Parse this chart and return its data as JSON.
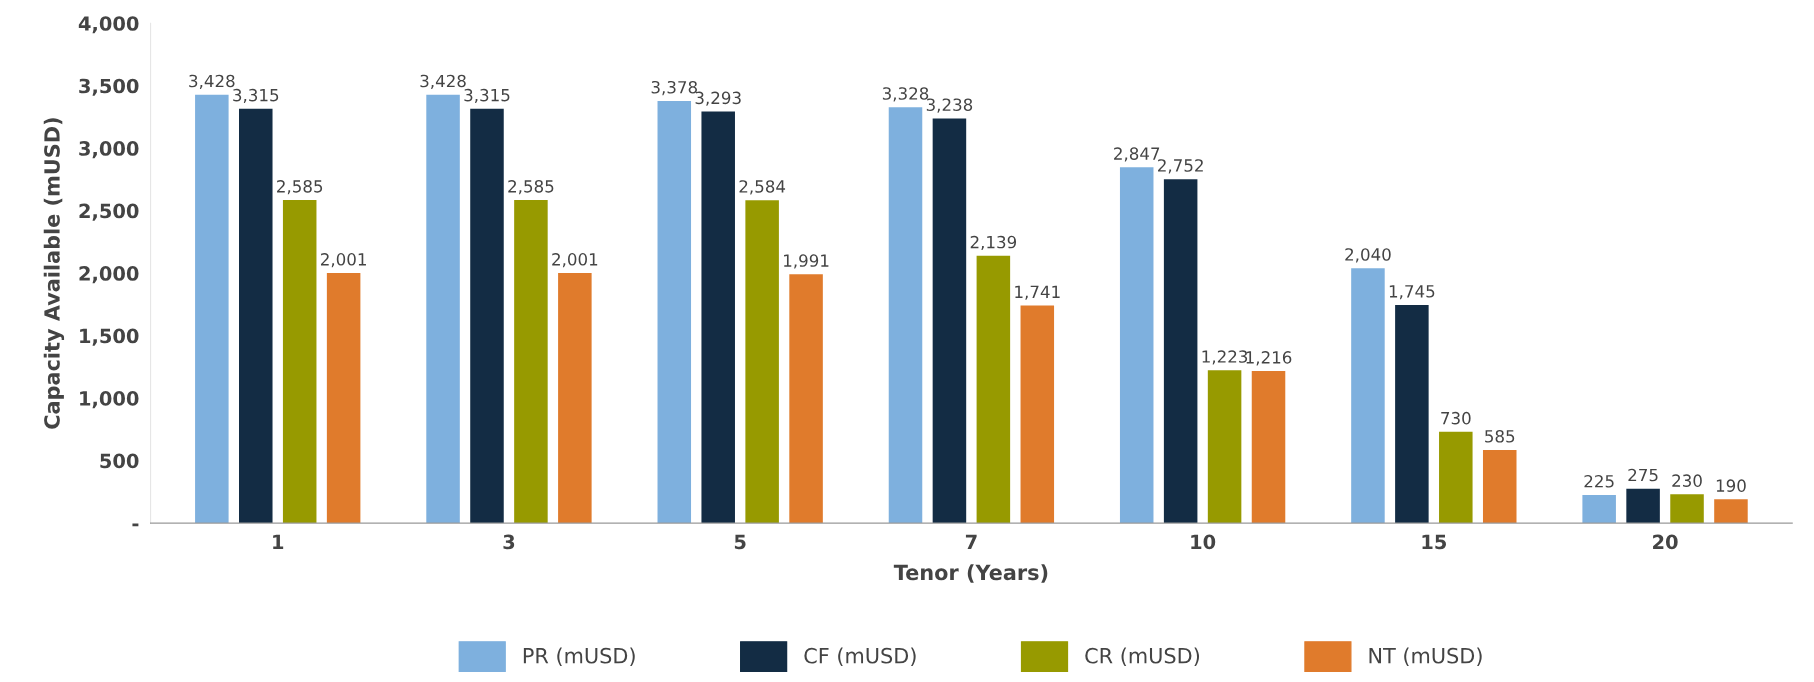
{
  "chart_data": {
    "type": "bar",
    "xlabel": "Tenor (Years)",
    "ylabel": "Capacity Available (mUSD)",
    "categories": [
      "1",
      "3",
      "5",
      "7",
      "10",
      "15",
      "20"
    ],
    "series": [
      {
        "name": "PR (mUSD)",
        "color": "#7eb0de",
        "values": [
          3428,
          3428,
          3378,
          3328,
          2847,
          2040,
          225
        ],
        "value_labels": [
          "3,428",
          "3,428",
          "3,378",
          "3,328",
          "2,847",
          "2,040",
          "225"
        ]
      },
      {
        "name": "CF (mUSD)",
        "color": "#132c44",
        "values": [
          3315,
          3315,
          3293,
          3238,
          2752,
          1745,
          275
        ],
        "value_labels": [
          "3,315",
          "3,315",
          "3,293",
          "3,238",
          "2,752",
          "1,745",
          "275"
        ]
      },
      {
        "name": "CR (mUSD)",
        "color": "#979a00",
        "values": [
          2585,
          2585,
          2584,
          2139,
          1223,
          730,
          230
        ],
        "value_labels": [
          "2,585",
          "2,585",
          "2,584",
          "2,139",
          "1,223",
          "730",
          "230"
        ]
      },
      {
        "name": "NT (mUSD)",
        "color": "#e07b2c",
        "values": [
          2001,
          2001,
          1991,
          1741,
          1216,
          585,
          190
        ],
        "value_labels": [
          "2,001",
          "2,001",
          "1,991",
          "1,741",
          "1,216",
          "585",
          "190"
        ]
      }
    ],
    "ylim": [
      0,
      4000
    ],
    "yticks": [
      {
        "value": 0,
        "label": "-"
      },
      {
        "value": 500,
        "label": "500"
      },
      {
        "value": 1000,
        "label": "1,000"
      },
      {
        "value": 1500,
        "label": "1,500"
      },
      {
        "value": 2000,
        "label": "2,000"
      },
      {
        "value": 2500,
        "label": "2,500"
      },
      {
        "value": 3000,
        "label": "3,000"
      },
      {
        "value": 3500,
        "label": "3,500"
      },
      {
        "value": 4000,
        "label": "4,000"
      }
    ],
    "grid": false,
    "legend": "bottom"
  }
}
